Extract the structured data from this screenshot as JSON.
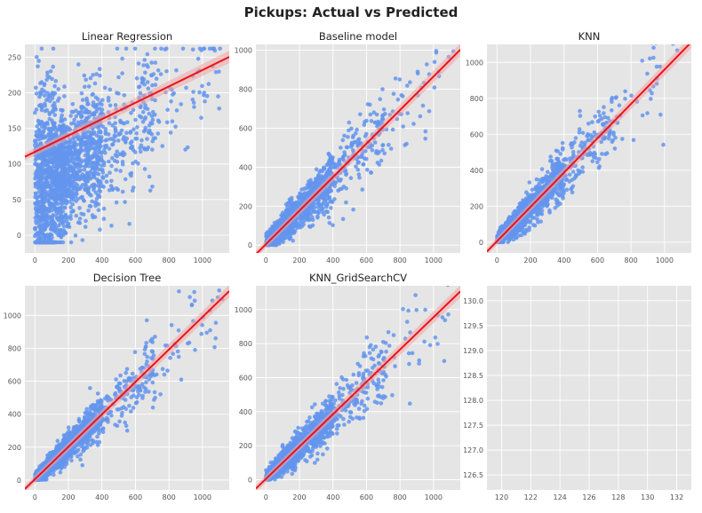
{
  "suptitle": "Pickups: Actual vs Predicted",
  "colors": {
    "points": "#6495ED",
    "fit_line": "#E8141B",
    "panel_bg": "#E5E5E5",
    "grid": "#FFFFFF",
    "band": "#F4A4A4"
  },
  "chart_data": [
    {
      "type": "scatter",
      "title": "Linear Regression",
      "xlabel": "",
      "ylabel": "",
      "xlim": [
        -60,
        1160
      ],
      "ylim": [
        -25,
        268
      ],
      "xticks": [
        0,
        200,
        400,
        600,
        800,
        1000
      ],
      "yticks": [
        0,
        50,
        100,
        150,
        200,
        250
      ],
      "x_max_points": 1120,
      "fit_line": {
        "intercept": 117,
        "slope": 0.115
      },
      "grid": true
    },
    {
      "type": "scatter",
      "title": "Baseline model",
      "xlabel": "",
      "ylabel": "",
      "xlim": [
        -60,
        1160
      ],
      "ylim": [
        -40,
        1030
      ],
      "xticks": [
        0,
        200,
        400,
        600,
        800,
        1000
      ],
      "yticks": [
        0,
        200,
        400,
        600,
        800,
        1000
      ],
      "x_max_points": 1120,
      "fit_line": {
        "intercept": 5,
        "slope": 0.86
      },
      "grid": true
    },
    {
      "type": "scatter",
      "title": "KNN",
      "xlabel": "",
      "ylabel": "",
      "xlim": [
        -60,
        1160
      ],
      "ylim": [
        -60,
        1100
      ],
      "xticks": [
        0,
        200,
        400,
        600,
        800,
        1000
      ],
      "yticks": [
        0,
        200,
        400,
        600,
        800,
        1000
      ],
      "x_max_points": 1120,
      "fit_line": {
        "intercept": 5,
        "slope": 0.955
      },
      "grid": true
    },
    {
      "type": "scatter",
      "title": "Decision Tree",
      "xlabel": "",
      "ylabel": "",
      "xlim": [
        -60,
        1160
      ],
      "ylim": [
        -60,
        1180
      ],
      "xticks": [
        0,
        200,
        400,
        600,
        800,
        1000
      ],
      "yticks": [
        0,
        200,
        400,
        600,
        800,
        1000
      ],
      "x_max_points": 1120,
      "fit_line": {
        "intercept": 5,
        "slope": 0.985
      },
      "grid": true
    },
    {
      "type": "scatter",
      "title": "KNN_GridSearchCV",
      "xlabel": "",
      "ylabel": "",
      "xlim": [
        -60,
        1160
      ],
      "ylim": [
        -60,
        1140
      ],
      "xticks": [
        0,
        200,
        400,
        600,
        800,
        1000
      ],
      "yticks": [
        0,
        200,
        400,
        600,
        800,
        1000
      ],
      "x_max_points": 1120,
      "fit_line": {
        "intercept": 5,
        "slope": 0.95
      },
      "grid": true
    },
    {
      "type": "scatter",
      "title": "",
      "xlabel": "",
      "ylabel": "",
      "xlim": [
        119,
        133
      ],
      "ylim": [
        126.2,
        130.3
      ],
      "xticks": [
        120,
        122,
        124,
        126,
        128,
        130,
        132
      ],
      "yticks": [
        126.5,
        127.0,
        127.5,
        128.0,
        128.5,
        129.0,
        129.5,
        130.0
      ],
      "empty": true,
      "grid": true
    }
  ]
}
